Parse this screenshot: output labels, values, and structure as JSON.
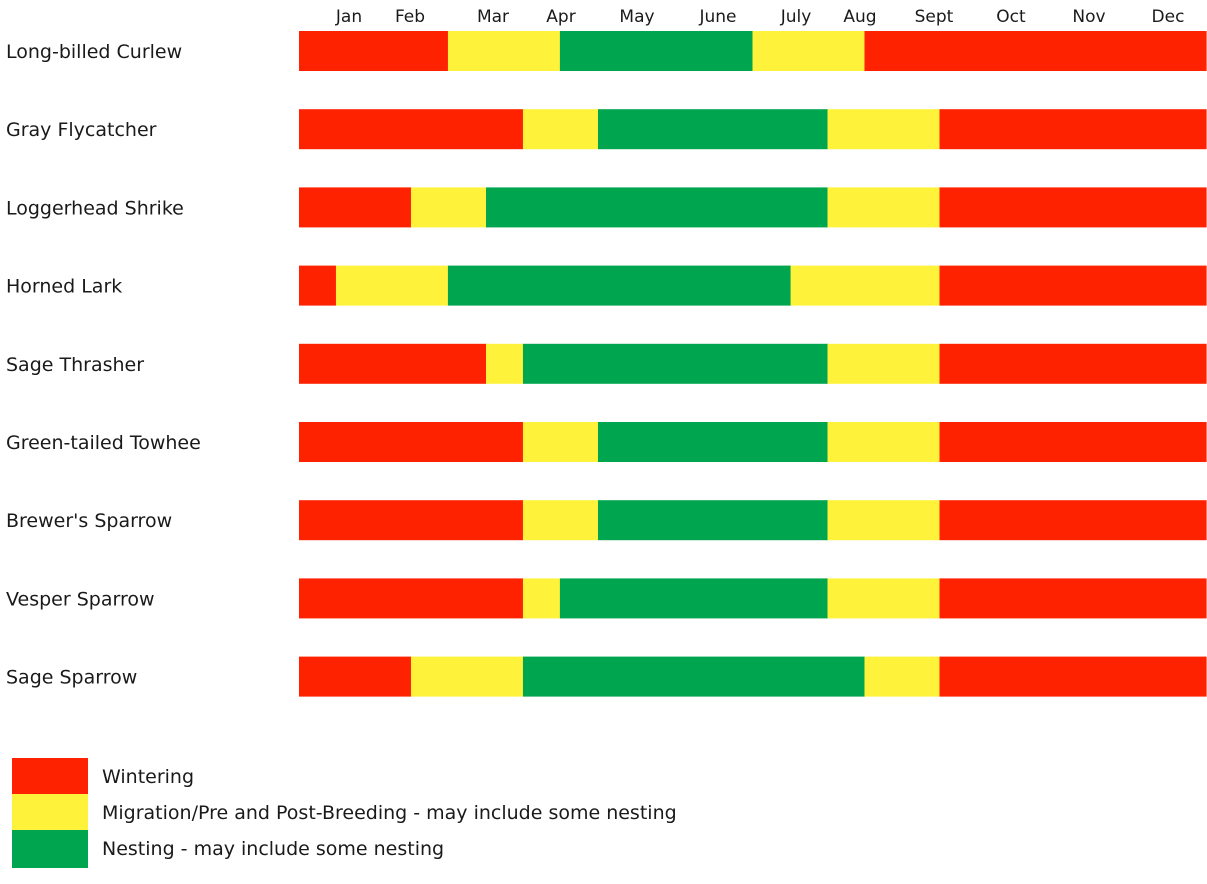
{
  "chart_data": {
    "type": "bar",
    "orientation": "horizontal-timeline",
    "months": [
      "Jan",
      "Feb",
      "Mar",
      "Apr",
      "May",
      "June",
      "July",
      "Aug",
      "Sept",
      "Oct",
      "Nov",
      "Dec"
    ],
    "colors": {
      "wintering": "#ff2200",
      "migration": "#fff23a",
      "nesting": "#00a550"
    },
    "legend": [
      {
        "key": "wintering",
        "label": "Wintering",
        "color": "#ff2200"
      },
      {
        "key": "migration",
        "label": "Migration/Pre and Post-Breeding - may include some nesting",
        "color": "#fff23a"
      },
      {
        "key": "nesting",
        "label": "Nesting - may include some nesting",
        "color": "#00a550"
      }
    ],
    "legend_position": "bottom-left",
    "grid": false,
    "series": [
      {
        "species": "Long-billed Curlew",
        "segments": [
          {
            "status": "wintering",
            "start": 0,
            "end": 1.33
          },
          {
            "status": "migration",
            "start": 1.33,
            "end": 2.33
          },
          {
            "status": "nesting",
            "start": 2.33,
            "end": 4.05
          },
          {
            "status": "migration",
            "start": 4.05,
            "end": 5.05
          },
          {
            "status": "wintering",
            "start": 5.05,
            "end": 8.1
          }
        ]
      },
      {
        "species": "Gray Flycatcher",
        "segments": [
          {
            "status": "wintering",
            "start": 0,
            "end": 2.0
          },
          {
            "status": "migration",
            "start": 2.0,
            "end": 2.67
          },
          {
            "status": "nesting",
            "start": 2.67,
            "end": 4.72
          },
          {
            "status": "migration",
            "start": 4.72,
            "end": 5.72
          },
          {
            "status": "wintering",
            "start": 5.72,
            "end": 8.1
          }
        ]
      },
      {
        "species": "Loggerhead Shrike",
        "segments": [
          {
            "status": "wintering",
            "start": 0,
            "end": 1.0
          },
          {
            "status": "migration",
            "start": 1.0,
            "end": 1.67
          },
          {
            "status": "nesting",
            "start": 1.67,
            "end": 4.72
          },
          {
            "status": "migration",
            "start": 4.72,
            "end": 5.72
          },
          {
            "status": "wintering",
            "start": 5.72,
            "end": 8.1
          }
        ]
      },
      {
        "species": "Horned Lark",
        "segments": [
          {
            "status": "wintering",
            "start": 0,
            "end": 0.33
          },
          {
            "status": "migration",
            "start": 0.33,
            "end": 1.33
          },
          {
            "status": "nesting",
            "start": 1.33,
            "end": 4.39
          },
          {
            "status": "migration",
            "start": 4.39,
            "end": 5.72
          },
          {
            "status": "wintering",
            "start": 5.72,
            "end": 8.1
          }
        ]
      },
      {
        "species": "Sage Thrasher",
        "segments": [
          {
            "status": "wintering",
            "start": 0,
            "end": 1.67
          },
          {
            "status": "migration",
            "start": 1.67,
            "end": 2.0
          },
          {
            "status": "nesting",
            "start": 2.0,
            "end": 4.72
          },
          {
            "status": "migration",
            "start": 4.72,
            "end": 5.72
          },
          {
            "status": "wintering",
            "start": 5.72,
            "end": 8.1
          }
        ]
      },
      {
        "species": "Green-tailed Towhee",
        "segments": [
          {
            "status": "wintering",
            "start": 0,
            "end": 2.0
          },
          {
            "status": "migration",
            "start": 2.0,
            "end": 2.67
          },
          {
            "status": "nesting",
            "start": 2.67,
            "end": 4.72
          },
          {
            "status": "migration",
            "start": 4.72,
            "end": 5.72
          },
          {
            "status": "wintering",
            "start": 5.72,
            "end": 8.1
          }
        ]
      },
      {
        "species": "Brewer's Sparrow",
        "segments": [
          {
            "status": "wintering",
            "start": 0,
            "end": 2.0
          },
          {
            "status": "migration",
            "start": 2.0,
            "end": 2.67
          },
          {
            "status": "nesting",
            "start": 2.67,
            "end": 4.72
          },
          {
            "status": "migration",
            "start": 4.72,
            "end": 5.72
          },
          {
            "status": "wintering",
            "start": 5.72,
            "end": 8.1
          }
        ]
      },
      {
        "species": "Vesper Sparrow",
        "segments": [
          {
            "status": "wintering",
            "start": 0,
            "end": 2.0
          },
          {
            "status": "migration",
            "start": 2.0,
            "end": 2.33
          },
          {
            "status": "nesting",
            "start": 2.33,
            "end": 4.72
          },
          {
            "status": "migration",
            "start": 4.72,
            "end": 5.72
          },
          {
            "status": "wintering",
            "start": 5.72,
            "end": 8.1
          }
        ]
      },
      {
        "species": "Sage Sparrow",
        "segments": [
          {
            "status": "wintering",
            "start": 0,
            "end": 1.0
          },
          {
            "status": "migration",
            "start": 1.0,
            "end": 2.0
          },
          {
            "status": "nesting",
            "start": 2.0,
            "end": 5.05
          },
          {
            "status": "migration",
            "start": 5.05,
            "end": 5.72
          },
          {
            "status": "wintering",
            "start": 5.72,
            "end": 8.1
          }
        ]
      }
    ]
  }
}
